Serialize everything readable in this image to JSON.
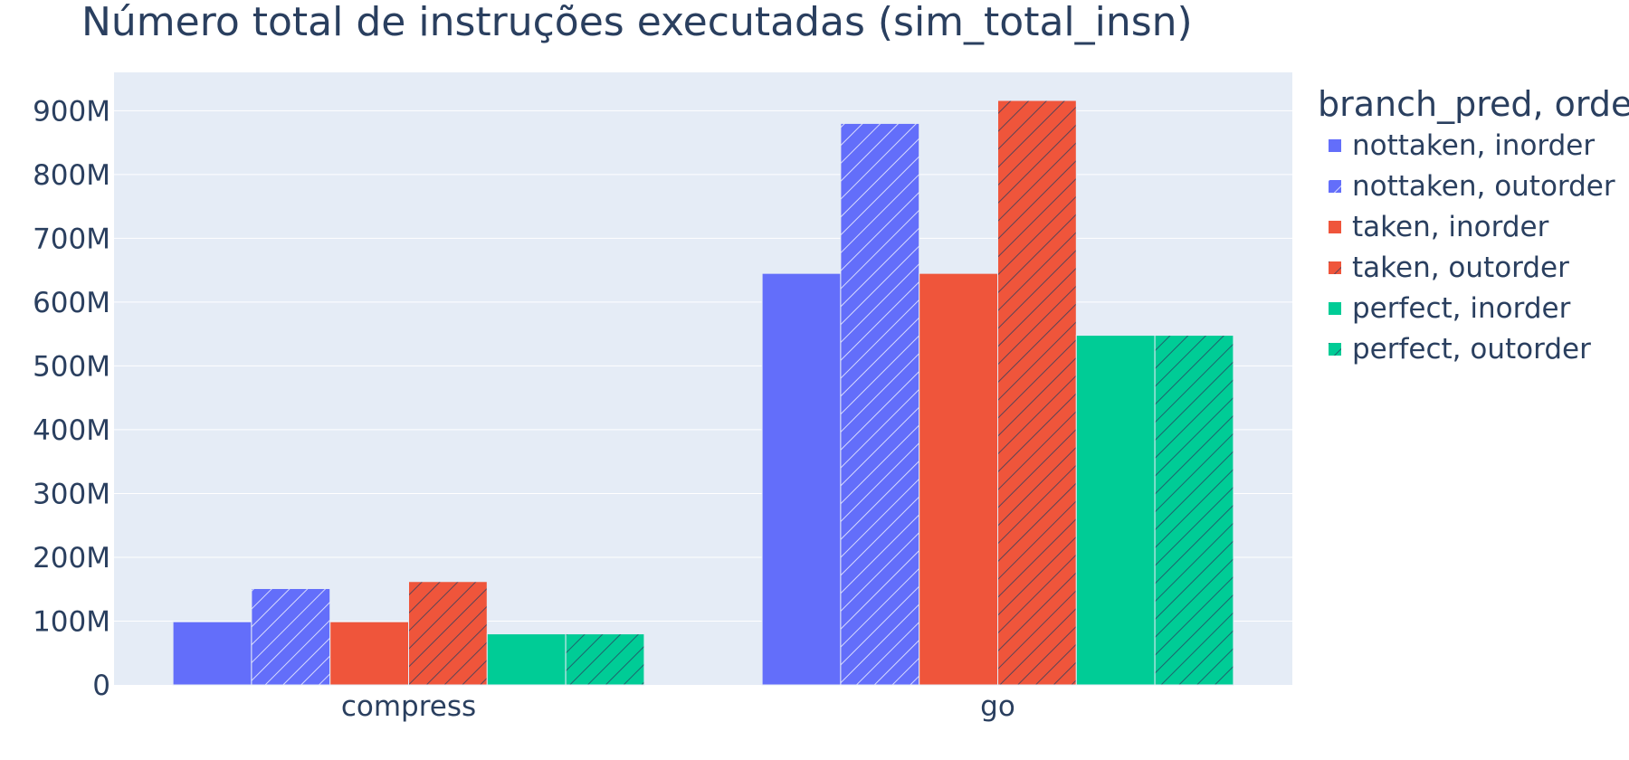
{
  "chart_data": {
    "type": "bar",
    "title": "Número total de instruções executadas (sim_total_insn)",
    "xlabel": "",
    "ylabel": "",
    "categories": [
      "compress",
      "go"
    ],
    "ylim": [
      0,
      960000000
    ],
    "yticks": [
      {
        "value": 0,
        "label": "0"
      },
      {
        "value": 100000000,
        "label": "100M"
      },
      {
        "value": 200000000,
        "label": "200M"
      },
      {
        "value": 300000000,
        "label": "300M"
      },
      {
        "value": 400000000,
        "label": "400M"
      },
      {
        "value": 500000000,
        "label": "500M"
      },
      {
        "value": 600000000,
        "label": "600M"
      },
      {
        "value": 700000000,
        "label": "700M"
      },
      {
        "value": 800000000,
        "label": "800M"
      },
      {
        "value": 900000000,
        "label": "900M"
      }
    ],
    "grid": true,
    "legend": {
      "title": "branch_pred, order",
      "placement": "top-right, outside plot"
    },
    "series": [
      {
        "name": "nottaken, inorder",
        "color": "#636efa",
        "pattern": "solid",
        "values": [
          99000000,
          645000000
        ]
      },
      {
        "name": "nottaken, outorder",
        "color": "#636efa",
        "pattern": "hatched",
        "values": [
          151000000,
          880000000
        ]
      },
      {
        "name": "taken, inorder",
        "color": "#ef553b",
        "pattern": "solid",
        "values": [
          99000000,
          645000000
        ]
      },
      {
        "name": "taken, outorder",
        "color": "#ef553b",
        "pattern": "hatched",
        "values": [
          162000000,
          916000000
        ]
      },
      {
        "name": "perfect, inorder",
        "color": "#00cc96",
        "pattern": "solid",
        "values": [
          80000000,
          548000000
        ]
      },
      {
        "name": "perfect, outorder",
        "color": "#00cc96",
        "pattern": "hatched",
        "values": [
          80000000,
          548000000
        ]
      }
    ]
  },
  "colors": {
    "plot_background": "#e5ecf6",
    "gridline": "#ffffff",
    "text": "#2a3f5f"
  }
}
